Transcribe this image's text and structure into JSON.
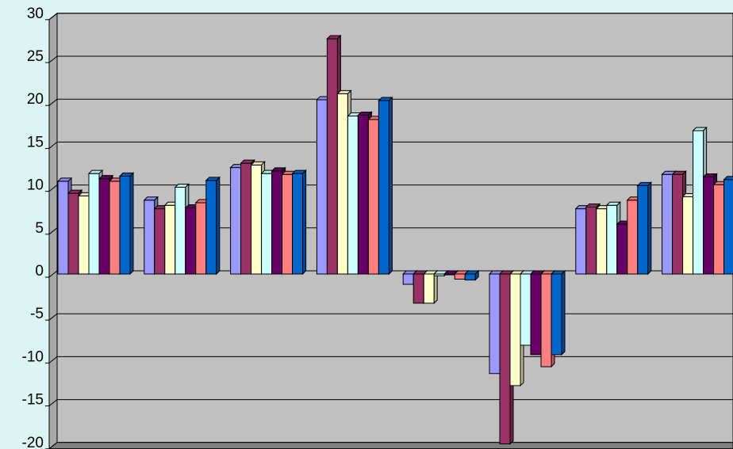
{
  "chart_data": {
    "type": "bar",
    "style": "3d-clustered-column",
    "title": "",
    "xlabel": "",
    "ylabel": "",
    "ylim": [
      -20,
      30
    ],
    "yticks": [
      -20,
      -15,
      -10,
      -5,
      0,
      5,
      10,
      15,
      20,
      25,
      30
    ],
    "grid": true,
    "legend": "none",
    "categories": [
      "",
      "",
      "",
      "",
      "",
      "",
      "",
      ""
    ],
    "series": [
      {
        "color": "#9999ff",
        "values": [
          10.8,
          8.6,
          12.4,
          20.3,
          -1.2,
          -11.6,
          7.6,
          11.6
        ]
      },
      {
        "color": "#993366",
        "values": [
          9.4,
          7.6,
          12.9,
          27.4,
          -3.4,
          -19.8,
          7.8,
          11.6
        ]
      },
      {
        "color": "#ffffcc",
        "values": [
          9.1,
          8.0,
          12.7,
          21.0,
          -3.4,
          -13.0,
          7.6,
          9.0
        ]
      },
      {
        "color": "#ccffff",
        "values": [
          11.7,
          10.1,
          11.7,
          18.4,
          -0.2,
          -8.3,
          8.0,
          16.7
        ]
      },
      {
        "color": "#660066",
        "values": [
          11.1,
          7.7,
          12.0,
          18.5,
          -0.1,
          -9.4,
          5.8,
          11.3
        ]
      },
      {
        "color": "#ff8080",
        "values": [
          10.8,
          8.3,
          11.6,
          18.0,
          -0.6,
          -10.8,
          8.6,
          10.4
        ]
      },
      {
        "color": "#0066cc",
        "values": [
          11.4,
          10.9,
          11.7,
          20.2,
          -0.7,
          -9.4,
          10.3,
          11.0
        ]
      }
    ],
    "colors": {
      "page_background": "#dcf4f2",
      "plot_background": "#c0c0c0",
      "floor": "#808080",
      "grid": "#000000"
    }
  }
}
